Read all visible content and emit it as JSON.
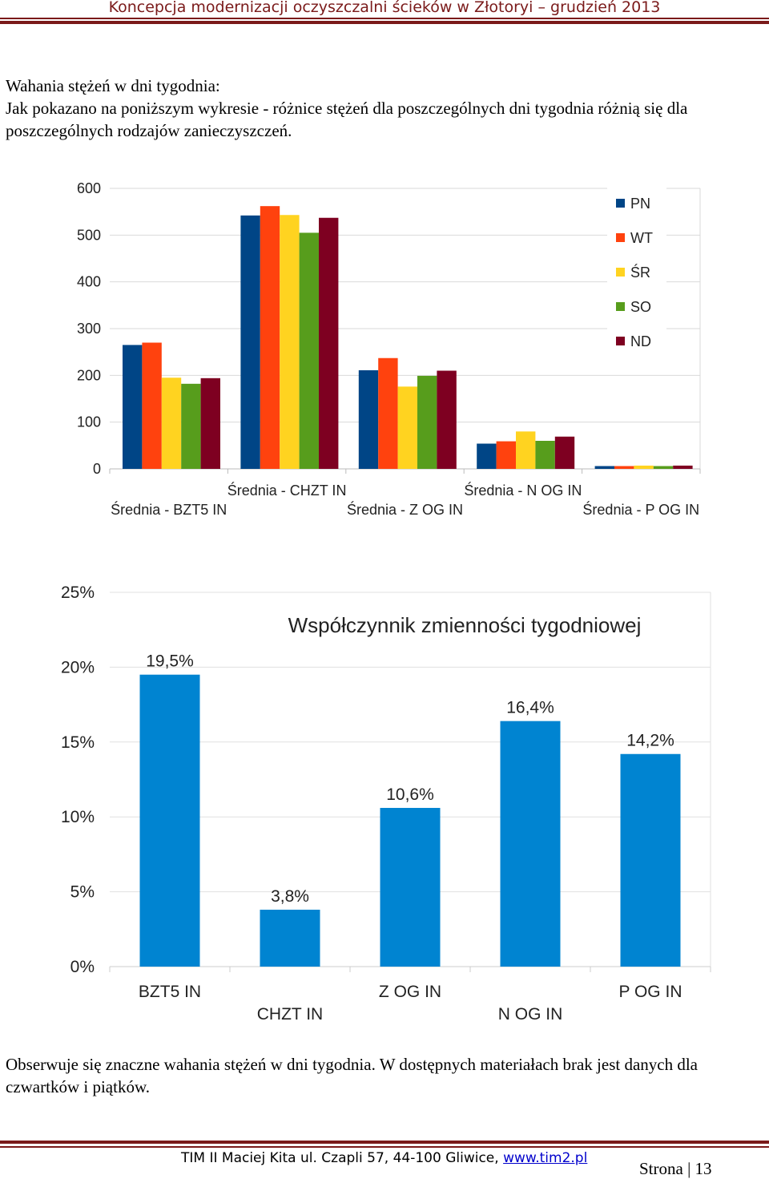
{
  "header": {
    "title": "Koncepcja modernizacji oczyszczalni ścieków w Złotoryi – grudzień 2013"
  },
  "intro": {
    "line1": "Wahania stężeń w dni tygodnia:",
    "line2": "Jak pokazano na poniższym wykresie - różnice stężeń dla poszczególnych dni tygodnia różnią się dla poszczególnych rodzajów zanieczyszczeń."
  },
  "chart_data": [
    {
      "type": "bar",
      "title": "",
      "categories": [
        "Średnia - BZT5 IN",
        "Średnia - CHZT IN",
        "Średnia - Z OG IN",
        "Średnia - N OG IN",
        "Średnia - P OG IN"
      ],
      "series": [
        {
          "name": "PN",
          "color": "#004586",
          "values": [
            265,
            542,
            211,
            54,
            6
          ]
        },
        {
          "name": "WT",
          "color": "#ff420e",
          "values": [
            270,
            562,
            237,
            59,
            6
          ]
        },
        {
          "name": "ŚR",
          "color": "#ffd320",
          "values": [
            195,
            543,
            176,
            80,
            7
          ]
        },
        {
          "name": "SO",
          "color": "#579d1c",
          "values": [
            182,
            505,
            199,
            60,
            6
          ]
        },
        {
          "name": "ND",
          "color": "#7e0021",
          "values": [
            194,
            537,
            210,
            69,
            7
          ]
        }
      ],
      "yticks": [
        "0",
        "100",
        "200",
        "300",
        "400",
        "500",
        "600"
      ],
      "ylim": [
        0,
        600
      ],
      "legend": "top-right",
      "grid": true
    },
    {
      "type": "bar",
      "title": "Współczynnik zmienności tygodniowej",
      "categories": [
        "BZT5 IN",
        "CHZT IN",
        "Z OG IN",
        "N OG IN",
        "P OG IN"
      ],
      "values": [
        19.5,
        3.8,
        10.6,
        16.4,
        14.2
      ],
      "data_labels": [
        "19,5%",
        "3,8%",
        "10,6%",
        "16,4%",
        "14,2%"
      ],
      "color": "#0084d1",
      "yticks": [
        "0%",
        "5%",
        "10%",
        "15%",
        "20%",
        "25%"
      ],
      "ylim": [
        0,
        25
      ],
      "grid": true
    }
  ],
  "closing": {
    "text": "Obserwuje się znaczne wahania stężeń w dni tygodnia. W dostępnych materiałach brak jest danych dla czwartków i piątków."
  },
  "footer": {
    "text": "TIM II Maciej Kita ul. Czapli 57, 44-100 Gliwice, ",
    "link": "www.tim2.pl",
    "page_prefix": "Strona | ",
    "page_number": "13"
  }
}
